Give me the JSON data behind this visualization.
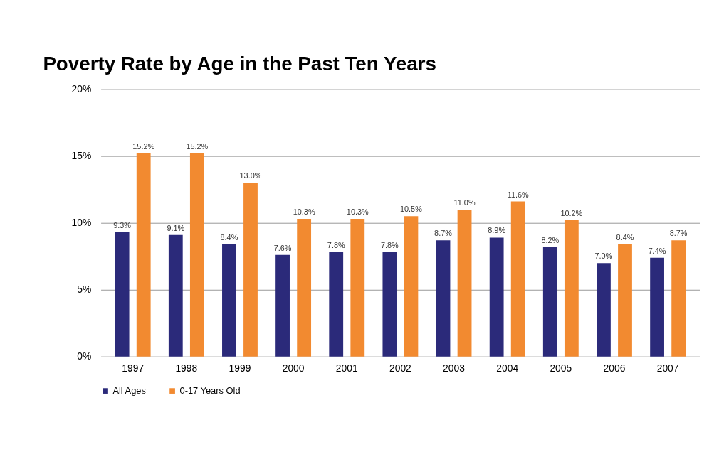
{
  "chart_data": {
    "type": "bar",
    "title": "Poverty Rate by Age in the Past Ten Years",
    "categories": [
      "1997",
      "1998",
      "1999",
      "2000",
      "2001",
      "2002",
      "2003",
      "2004",
      "2005",
      "2006",
      "2007"
    ],
    "series": [
      {
        "name": "All Ages",
        "color": "#2b2a7a",
        "values": [
          9.3,
          9.1,
          8.4,
          7.6,
          7.8,
          7.8,
          8.7,
          8.9,
          8.2,
          7.0,
          7.4
        ],
        "value_labels": [
          "9.3%",
          "9.1%",
          "8.4%",
          "7.6%",
          "7.8%",
          "7.8%",
          "8.7%",
          "8.9%",
          "8.2%",
          "7.0%",
          "7.4%"
        ]
      },
      {
        "name": "0-17 Years Old",
        "color": "#f28a30",
        "values": [
          15.2,
          15.2,
          13.0,
          10.3,
          10.3,
          10.5,
          11.0,
          11.6,
          10.2,
          8.4,
          8.7
        ],
        "value_labels": [
          "15.2%",
          "15.2%",
          "13.0%",
          "10.3%",
          "10.3%",
          "10.5%",
          "11.0%",
          "11.6%",
          "10.2%",
          "8.4%",
          "8.7%"
        ]
      }
    ],
    "ylim": [
      0,
      20
    ],
    "yticks": [
      {
        "value": 0,
        "label": "0%"
      },
      {
        "value": 5,
        "label": "5%"
      },
      {
        "value": 10,
        "label": "10%"
      },
      {
        "value": 15,
        "label": "15%"
      },
      {
        "value": 20,
        "label": "20%"
      }
    ],
    "grid": "y",
    "legend": "bottom"
  }
}
